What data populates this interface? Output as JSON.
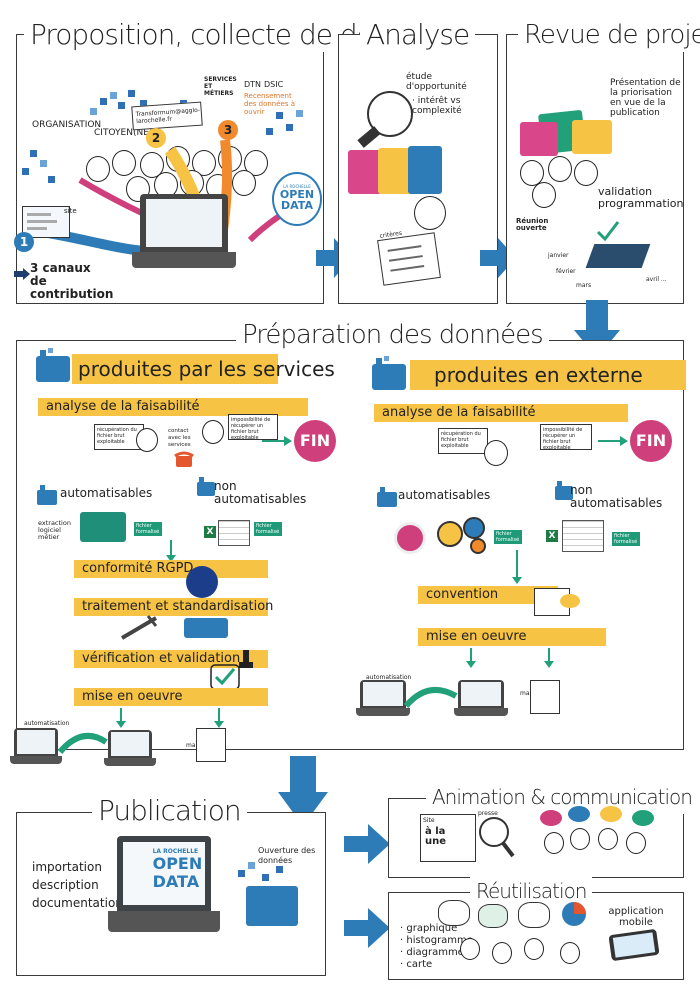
{
  "sections": {
    "proposition": "Proposition, collecte de données",
    "analyse": "Analyse",
    "revue": "Revue de projet",
    "preparation": "Préparation des données",
    "publication": "Publication",
    "animation": "Animation & communication",
    "reutilisation": "Réutilisation"
  },
  "proposition": {
    "organisation": "ORGANISATION",
    "citoyen": "CITOYEN(NE)",
    "services_metiers": "SERVICES ET MÉTIERS",
    "dtn": "DTN",
    "dsic": "DSIC",
    "recensement": "Recensement des données à ouvrir",
    "email": "Transformum@agglo-larochelle.fr",
    "site": "site",
    "badge1": "1",
    "badge2": "2",
    "badge3": "3",
    "canaux": "3 canaux de contribution"
  },
  "analyse": {
    "etude": "étude d'opportunité",
    "interet": "· intérêt vs complexité",
    "criteres": "critères"
  },
  "revue": {
    "presentation": "Présentation de la priorisation en vue de la publication",
    "validation": "validation programmation",
    "reunion": "Réunion ouverte",
    "janvier": "janvier",
    "fevrier": "février",
    "mars": "mars",
    "avril": "avril ..."
  },
  "services": {
    "header": "produites par les services",
    "faisabilite": "analyse de la faisabilité",
    "recuperation": "récupération du fichier brut exploitable",
    "contact": "contact avec les services",
    "impossibilite": "impossibilité de récupérer un fichier brut exploitable",
    "fin": "FIN",
    "automatisables": "automatisables",
    "non_automatisables": "non automatisables",
    "extraction": "extraction logiciel métier",
    "fichier": "fichier formalisé",
    "rgpd": "conformité RGPD",
    "traitement": "traitement et standardisation",
    "verification": "vérification et validation",
    "mise": "mise en oeuvre",
    "automatisation": "automatisation",
    "manuel": "manuel"
  },
  "externe": {
    "header": "produites en externe",
    "faisabilite": "analyse de la faisabilité",
    "recuperation": "récupération du fichier brut exploitable",
    "impossibilite": "impossibilité de récupérer un fichier brut exploitable",
    "fin": "FIN",
    "automatisables": "automatisables",
    "non_automatisables": "non automatisables",
    "fichier": "fichier formalisé",
    "convention": "convention",
    "mise": "mise en oeuvre",
    "automatisation": "automatisation",
    "manuel": "manuel"
  },
  "publication": {
    "importation": "importation",
    "description": "description",
    "documentation": "documentation",
    "ouverture": "Ouverture des données",
    "brand_top": "LA ROCHELLE",
    "brand_open": "OPEN",
    "brand_data": "DATA"
  },
  "animation": {
    "site": "Site",
    "presse": "presse",
    "alaune": "à la une"
  },
  "reutilisation": {
    "graphique": "· graphique",
    "histogramme": "· histogramme",
    "diagramme": "· diagramme",
    "carte": "· carte",
    "application": "application mobile"
  },
  "colors": {
    "yellow": "#f6c344",
    "blue": "#2e7cb7",
    "pink": "#cf3f7c",
    "green": "#21a07a",
    "orange": "#f08a2c"
  }
}
